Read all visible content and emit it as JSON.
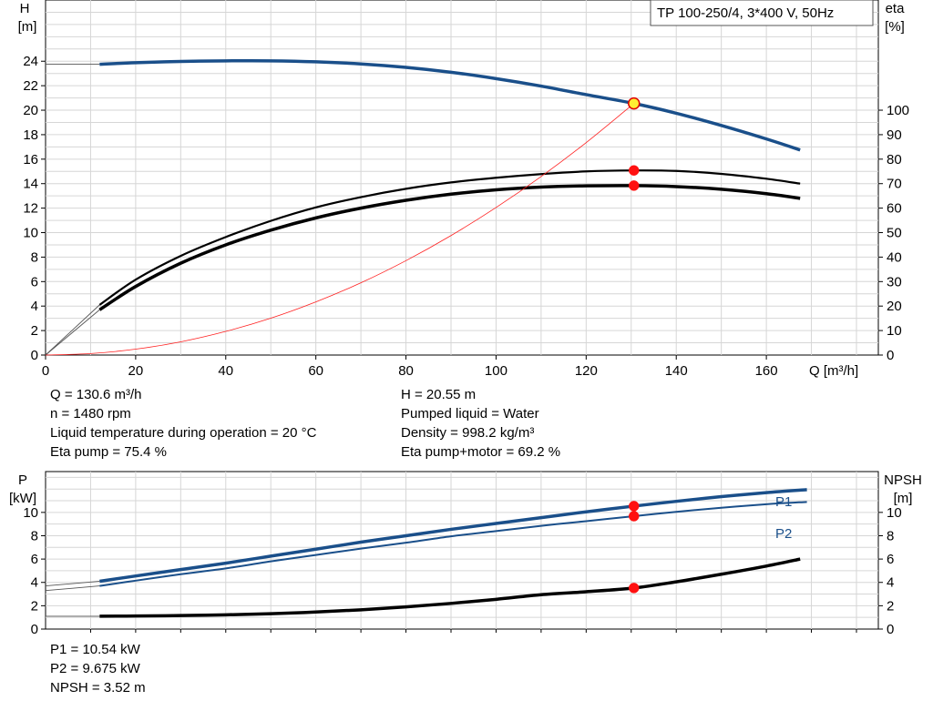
{
  "chart_data": [
    {
      "type": "line",
      "title": "TP 100-250/4, 3*400 V, 50Hz",
      "xlabel": "Q [m³/h]",
      "ylabel": "H",
      "ylabel_unit": "[m]",
      "y2label": "eta",
      "y2label_unit": "[%]",
      "xlim": [
        0,
        180
      ],
      "ylim": [
        0,
        29
      ],
      "y2lim": [
        0,
        145
      ],
      "x_ticks": [
        "0",
        "20",
        "40",
        "60",
        "80",
        "100",
        "120",
        "140",
        "160"
      ],
      "y_ticks": [
        "0",
        "2",
        "4",
        "6",
        "8",
        "10",
        "12",
        "14",
        "16",
        "18",
        "20",
        "22",
        "24"
      ],
      "y2_ticks": [
        "0",
        "10",
        "20",
        "30",
        "40",
        "50",
        "60",
        "70",
        "80",
        "90",
        "100"
      ],
      "grid": true,
      "series": [
        {
          "name": "",
          "axis": "left",
          "color": "#1a4f8a",
          "width": 3.5,
          "x": [
            12,
            20,
            30,
            40,
            50,
            60,
            70,
            80,
            90,
            100,
            110,
            120,
            130.6,
            140,
            150,
            160,
            167.5
          ],
          "y": [
            23.75,
            23.88,
            23.98,
            24.03,
            24.03,
            23.95,
            23.78,
            23.5,
            23.1,
            22.58,
            21.97,
            21.27,
            20.55,
            19.75,
            18.75,
            17.65,
            16.75
          ]
        },
        {
          "name": "",
          "axis": "right",
          "color": "#000000",
          "width": 2.2,
          "x": [
            12,
            20,
            30,
            40,
            50,
            60,
            70,
            80,
            90,
            100,
            110,
            120,
            130.6,
            140,
            150,
            160,
            167.5
          ],
          "y": [
            20.5,
            30.8,
            40.5,
            48.2,
            54.8,
            60.3,
            64.5,
            67.9,
            70.5,
            72.4,
            73.9,
            75.0,
            75.4,
            75.2,
            74.0,
            72.0,
            70.0
          ]
        },
        {
          "name": "",
          "axis": "right",
          "color": "#000000",
          "width": 3.5,
          "x": [
            12,
            20,
            30,
            40,
            50,
            60,
            70,
            80,
            90,
            100,
            110,
            120,
            130.6,
            140,
            150,
            160,
            167.5
          ],
          "y": [
            18.5,
            28.0,
            37.5,
            45.0,
            51.0,
            56.0,
            60.0,
            63.2,
            65.7,
            67.5,
            68.6,
            69.1,
            69.2,
            68.8,
            67.7,
            65.9,
            64.0
          ]
        },
        {
          "name": "",
          "axis": "left",
          "color": "#ff2020",
          "width": 0.8,
          "x": [
            0,
            10,
            20,
            30,
            40,
            50,
            60,
            70,
            80,
            90,
            100,
            110,
            120,
            130.6
          ],
          "y": [
            0,
            0.12,
            0.48,
            1.08,
            1.93,
            3.01,
            4.34,
            5.9,
            7.71,
            9.76,
            12.05,
            14.58,
            17.35,
            20.55
          ]
        }
      ],
      "extension_lines": [
        {
          "color": "#555555",
          "x": [
            0,
            12
          ],
          "y": [
            23.75,
            23.75
          ],
          "axis": "left"
        },
        {
          "color": "#555555",
          "x": [
            0,
            12
          ],
          "y": [
            0,
            20.5
          ],
          "axis": "right"
        },
        {
          "color": "#555555",
          "x": [
            0,
            12
          ],
          "y": [
            0,
            18.5
          ],
          "axis": "right"
        }
      ],
      "markers": [
        {
          "x": 130.6,
          "y": 20.55,
          "axis": "left",
          "style": "duty"
        },
        {
          "x": 130.6,
          "y": 75.4,
          "axis": "right",
          "style": "red"
        },
        {
          "x": 130.6,
          "y": 69.2,
          "axis": "right",
          "style": "red"
        }
      ]
    },
    {
      "type": "line",
      "ylabel": "P",
      "ylabel_unit": "[kW]",
      "y2label": "NPSH",
      "y2label_unit": "[m]",
      "xlim": [
        0,
        180
      ],
      "ylim": [
        0,
        13.5
      ],
      "y2lim": [
        0,
        13.5
      ],
      "y_ticks": [
        "0",
        "2",
        "4",
        "6",
        "8",
        "10"
      ],
      "y2_ticks": [
        "0",
        "2",
        "4",
        "6",
        "8",
        "10"
      ],
      "grid": true,
      "series": [
        {
          "name": "P1",
          "axis": "left",
          "color": "#1a4f8a",
          "width": 3.5,
          "x": [
            12,
            20,
            30,
            40,
            50,
            60,
            70,
            80,
            90,
            100,
            110,
            120,
            130.6,
            140,
            150,
            160,
            169
          ],
          "y": [
            4.1,
            4.55,
            5.1,
            5.65,
            6.25,
            6.85,
            7.45,
            8.0,
            8.55,
            9.05,
            9.55,
            10.05,
            10.54,
            10.95,
            11.35,
            11.7,
            11.95
          ]
        },
        {
          "name": "P2",
          "axis": "left",
          "color": "#1a4f8a",
          "width": 2,
          "x": [
            12,
            20,
            30,
            40,
            50,
            60,
            70,
            80,
            90,
            100,
            110,
            120,
            130.6,
            140,
            150,
            160,
            169
          ],
          "y": [
            3.7,
            4.15,
            4.7,
            5.2,
            5.8,
            6.35,
            6.9,
            7.4,
            7.95,
            8.4,
            8.85,
            9.25,
            9.675,
            10.05,
            10.4,
            10.7,
            10.9
          ]
        },
        {
          "name": "",
          "axis": "right",
          "color": "#000000",
          "width": 3.5,
          "x": [
            12,
            20,
            30,
            40,
            50,
            60,
            70,
            80,
            90,
            100,
            110,
            120,
            130.6,
            140,
            150,
            160,
            167.5
          ],
          "y": [
            1.1,
            1.12,
            1.16,
            1.22,
            1.32,
            1.46,
            1.65,
            1.9,
            2.2,
            2.55,
            2.95,
            3.2,
            3.52,
            4.05,
            4.7,
            5.4,
            6.0
          ]
        }
      ],
      "extension_lines": [
        {
          "color": "#555555",
          "x": [
            0,
            12
          ],
          "y": [
            3.7,
            4.1
          ],
          "axis": "left"
        },
        {
          "color": "#555555",
          "x": [
            0,
            12
          ],
          "y": [
            3.3,
            3.7
          ],
          "axis": "left"
        },
        {
          "color": "#555555",
          "x": [
            0,
            12
          ],
          "y": [
            1.1,
            1.1
          ],
          "axis": "right"
        }
      ],
      "markers": [
        {
          "x": 130.6,
          "y": 10.54,
          "axis": "left",
          "style": "red"
        },
        {
          "x": 130.6,
          "y": 9.675,
          "axis": "left",
          "style": "red"
        },
        {
          "x": 130.6,
          "y": 3.52,
          "axis": "right",
          "style": "red"
        }
      ]
    }
  ],
  "info_upper_left": [
    "Q = 130.6 m³/h",
    "n = 1480 rpm",
    "Liquid temperature during operation = 20 °C",
    "Eta pump = 75.4 %"
  ],
  "info_upper_right": [
    "H = 20.55 m",
    "Pumped liquid = Water",
    "Density = 998.2 kg/m³",
    "Eta pump+motor = 69.2 %"
  ],
  "info_lower": [
    "P1 = 10.54 kW",
    "P2 = 9.675 kW",
    "NPSH = 3.52 m"
  ]
}
